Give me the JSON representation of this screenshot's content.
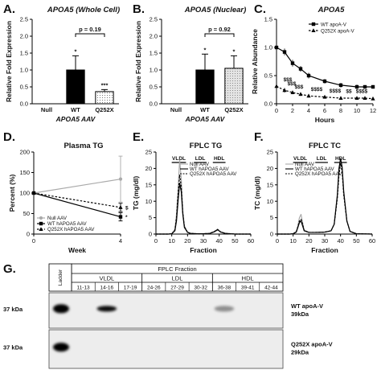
{
  "figure": {
    "width": 474,
    "height": 460
  },
  "panels": {
    "A": {
      "letter": "A."
    },
    "B": {
      "letter": "B."
    },
    "C": {
      "letter": "C."
    },
    "D": {
      "letter": "D."
    },
    "E": {
      "letter": "E."
    },
    "F": {
      "letter": "F."
    },
    "G": {
      "letter": "G."
    }
  },
  "chart_data": [
    {
      "id": "A",
      "type": "bar",
      "title": "APOA5 (Whole Cell)",
      "xlabel": "APOA5 AAV",
      "ylabel": "Relative Fold Expression",
      "categories": [
        "Null",
        "WT",
        "Q252X"
      ],
      "values": [
        0,
        1.0,
        0.36
      ],
      "errors": [
        0,
        0.42,
        0.06
      ],
      "ylim": [
        0,
        2.5
      ],
      "yticks": [
        "0.0",
        "0.5",
        "1.0",
        "1.5",
        "2.0",
        "2.5"
      ],
      "bar_fills": [
        "#ffffff",
        "#000000",
        "#ffffff"
      ],
      "bar_hatch": [
        false,
        false,
        true
      ],
      "marks": [
        "",
        "*",
        "***"
      ],
      "bracket": {
        "from": "WT",
        "to": "Q252X",
        "text": "p = 0.19"
      }
    },
    {
      "id": "B",
      "type": "bar",
      "title": "APOA5 (Nuclear)",
      "xlabel": "APOA5 AAV",
      "ylabel": "Relative Fold Expression",
      "categories": [
        "Null",
        "WT",
        "Q252X"
      ],
      "values": [
        0,
        1.0,
        1.05
      ],
      "errors": [
        0,
        0.47,
        0.37
      ],
      "ylim": [
        0,
        2.5
      ],
      "yticks": [
        "0.0",
        "0.5",
        "1.0",
        "1.5",
        "2.0",
        "2.5"
      ],
      "bar_fills": [
        "#ffffff",
        "#000000",
        "#dddddd"
      ],
      "bar_hatch": [
        false,
        false,
        true
      ],
      "marks": [
        "",
        "*",
        "*"
      ],
      "bracket": {
        "from": "WT",
        "to": "Q252X",
        "text": "p = 0.92"
      }
    },
    {
      "id": "C",
      "type": "line",
      "title": "APOA5",
      "xlabel": "Hours",
      "ylabel": "Relative Abundance",
      "xlim": [
        0,
        12
      ],
      "ylim": [
        0,
        1.5
      ],
      "xticks": [
        "0",
        "2",
        "4",
        "6",
        "8",
        "10",
        "12"
      ],
      "yticks": [
        "0.0",
        "0.5",
        "1.0",
        "1.5"
      ],
      "x": [
        0,
        1,
        2,
        3,
        4,
        6,
        8,
        10,
        11,
        12
      ],
      "series": [
        {
          "name": "WT apoA-V",
          "values": [
            1.0,
            0.92,
            0.72,
            0.62,
            0.5,
            0.4,
            0.33,
            0.3,
            0.3,
            0.3
          ],
          "errors": [
            0.07,
            0.06,
            0.06,
            0.05,
            0.05,
            0.04,
            0.04,
            0.04,
            0.03,
            0.03
          ],
          "dash": false,
          "marker": "square"
        },
        {
          "name": "Q252X apoA-V",
          "values": [
            0.31,
            0.24,
            0.2,
            0.17,
            0.14,
            0.12,
            0.1,
            0.1,
            0.1,
            0.09
          ],
          "errors": [
            0.05,
            0.04,
            0.03,
            0.03,
            0.03,
            0.02,
            0.02,
            0.02,
            0.02,
            0.02
          ],
          "dash": true,
          "marker": "triangle"
        }
      ],
      "annotations": [
        {
          "x": 1.4,
          "y": 0.4,
          "text": "$$$"
        },
        {
          "x": 1.9,
          "y": 0.33,
          "text": "$$$"
        },
        {
          "x": 2.8,
          "y": 0.27,
          "text": "$$$"
        },
        {
          "x": 5.0,
          "y": 0.23,
          "text": "$$$$"
        },
        {
          "x": 7.3,
          "y": 0.2,
          "text": "$$$$"
        },
        {
          "x": 9.0,
          "y": 0.19,
          "text": "$$"
        },
        {
          "x": 10.6,
          "y": 0.19,
          "text": "$$$$"
        }
      ],
      "legend": "top-right"
    },
    {
      "id": "D",
      "type": "line",
      "title": "Plasma TG",
      "xlabel": "Week",
      "ylabel": "Percent (%)",
      "xlim": [
        0,
        4
      ],
      "ylim": [
        0,
        200
      ],
      "xticks": [
        "0",
        "4"
      ],
      "yticks": [
        "0",
        "50",
        "100",
        "150",
        "200"
      ],
      "x": [
        0,
        4
      ],
      "series": [
        {
          "name": "Null AAV",
          "values": [
            100,
            134
          ],
          "errors": [
            0,
            56
          ],
          "color": "#aaaaaa",
          "dash": false,
          "marker": "circle"
        },
        {
          "name": "WT hAPOA5 AAV",
          "values": [
            100,
            42
          ],
          "errors": [
            0,
            10
          ],
          "color": "#000000",
          "dash": false,
          "marker": "square"
        },
        {
          "name": "Q252X hAPOA5 AAV",
          "values": [
            100,
            65
          ],
          "errors": [
            0,
            10
          ],
          "color": "#000000",
          "dash": true,
          "marker": "triangle"
        }
      ],
      "marks": [
        {
          "x": 4,
          "y": 65,
          "text": "$"
        },
        {
          "x": 4,
          "y": 42,
          "text": "*"
        }
      ],
      "legend": "bottom-left"
    },
    {
      "id": "E",
      "type": "line",
      "title": "FPLC TG",
      "xlabel": "Fraction",
      "ylabel": "TG (mg/dl)",
      "xlim": [
        0,
        60
      ],
      "ylim": [
        0,
        25
      ],
      "xticks": [
        "0",
        "10",
        "20",
        "30",
        "40",
        "50",
        "60"
      ],
      "yticks": [
        "0",
        "5",
        "10",
        "15",
        "20",
        "25"
      ],
      "x": [
        0,
        8,
        10,
        12,
        13,
        14,
        15,
        16,
        17,
        18,
        20,
        22,
        26,
        30,
        34,
        37,
        39,
        41,
        44,
        50,
        55,
        60
      ],
      "series": [
        {
          "name": "Null AAV",
          "values": [
            0,
            0,
            0.1,
            1.5,
            6,
            14,
            22.5,
            17,
            7,
            2.5,
            0.6,
            0.2,
            0.1,
            0.1,
            0.2,
            0.8,
            1.5,
            0.7,
            0.2,
            0,
            0,
            0
          ],
          "color": "#aaaaaa",
          "dash": false
        },
        {
          "name": "WT hAPOA5 AAV",
          "values": [
            0,
            0,
            0.1,
            1,
            4,
            10,
            15.5,
            13,
            6,
            2,
            0.5,
            0.2,
            0.1,
            0.1,
            0.2,
            0.7,
            1.3,
            0.6,
            0.2,
            0,
            0,
            0
          ],
          "color": "#000000",
          "dash": false
        },
        {
          "name": "Q252X hAPOA5 AAV",
          "values": [
            0,
            0,
            0.1,
            1.2,
            5,
            12,
            18,
            14.5,
            6.5,
            2.2,
            0.5,
            0.2,
            0.1,
            0.1,
            0.2,
            0.8,
            1.4,
            0.6,
            0.2,
            0,
            0,
            0
          ],
          "color": "#000000",
          "dash": true
        }
      ],
      "regions": [
        {
          "label": "VLDL",
          "from": 10,
          "to": 19
        },
        {
          "label": "LDL",
          "from": 24,
          "to": 32
        },
        {
          "label": "HDL",
          "from": 36,
          "to": 44
        }
      ],
      "legend": "top-right"
    },
    {
      "id": "F",
      "type": "line",
      "title": "FPLC TC",
      "xlabel": "Fraction",
      "ylabel": "TC (mg/dl)",
      "xlim": [
        0,
        60
      ],
      "ylim": [
        0,
        25
      ],
      "xticks": [
        "0",
        "10",
        "20",
        "30",
        "40",
        "50",
        "60"
      ],
      "yticks": [
        "0",
        "5",
        "10",
        "15",
        "20",
        "25"
      ],
      "x": [
        0,
        8,
        10,
        12,
        13,
        14,
        15,
        16,
        17,
        20,
        24,
        30,
        34,
        36,
        38,
        39,
        40,
        41,
        42,
        44,
        46,
        50,
        60
      ],
      "series": [
        {
          "name": "Null AAV",
          "values": [
            0,
            0,
            0.1,
            0.8,
            2.5,
            5,
            6,
            3.5,
            1.2,
            0.5,
            0.5,
            0.6,
            1,
            3,
            12,
            19,
            22.5,
            20,
            13,
            4,
            0.8,
            0.1,
            0
          ],
          "color": "#aaaaaa",
          "dash": false
        },
        {
          "name": "WT hAPOA5 AAV",
          "values": [
            0,
            0,
            0.1,
            0.6,
            2,
            3.5,
            4,
            2.5,
            1,
            0.5,
            0.5,
            0.6,
            1,
            3,
            12,
            20,
            23,
            20.5,
            13,
            4,
            0.8,
            0.1,
            0
          ],
          "color": "#000000",
          "dash": false
        },
        {
          "name": "Q252X hAPOA5 AAV",
          "values": [
            0,
            0,
            0.1,
            0.7,
            2.2,
            4,
            4.5,
            3,
            1.1,
            0.5,
            0.5,
            0.6,
            1,
            3,
            11,
            18,
            21.5,
            19,
            12,
            4,
            0.8,
            0.1,
            0
          ],
          "color": "#000000",
          "dash": true
        }
      ],
      "regions": [
        {
          "label": "VLDL",
          "from": 10,
          "to": 19
        },
        {
          "label": "LDL",
          "from": 24,
          "to": 32
        },
        {
          "label": "HDL",
          "from": 36,
          "to": 44
        }
      ],
      "legend": "top-left"
    }
  ],
  "blot": {
    "header": "FPLC Fraction",
    "ladder_label": "Ladder",
    "groups": [
      {
        "label": "VLDL",
        "fractions": [
          "11-13",
          "14-16",
          "17-19"
        ]
      },
      {
        "label": "LDL",
        "fractions": [
          "24-26",
          "27-29",
          "30-32"
        ]
      },
      {
        "label": "HDL",
        "fractions": [
          "36-38",
          "39-41",
          "42-44"
        ]
      }
    ],
    "rows": [
      {
        "kda": "37 kDa",
        "label_line1": "WT apoA-V",
        "label_line2": "39kDa",
        "band_intensity": [
          0,
          0.9,
          0,
          0,
          0,
          0,
          0.35,
          0,
          0
        ]
      },
      {
        "kda": "37 kDa",
        "label_line1": "Q252X apoA-V",
        "label_line2": "29kDa",
        "band_intensity": [
          0,
          0,
          0,
          0,
          0,
          0,
          0,
          0,
          0
        ]
      }
    ]
  }
}
